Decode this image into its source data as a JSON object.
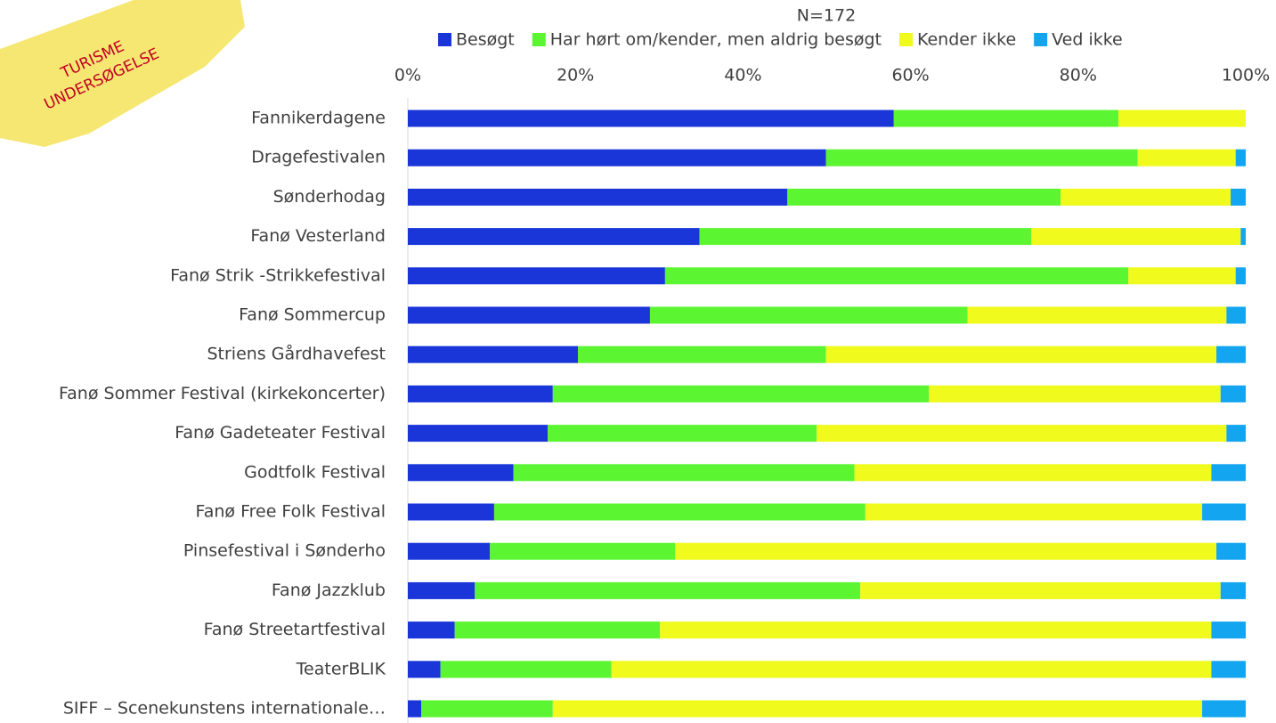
{
  "badge": {
    "lines": [
      "TURISME",
      "UNDERSØGELSE"
    ]
  },
  "chart_data": {
    "type": "stacked-barh",
    "title": "N=172",
    "categories": [
      "Fannikerdagene",
      "Dragefestivalen",
      "Sønderhodag",
      "Fanø Vesterland",
      "Fanø Strik -Strikkefestival",
      "Fanø Sommercup",
      "Striens Gårdhavefest",
      "Fanø Sommer Festival (kirkekoncerter)",
      "Fanø Gadeteater Festival",
      "Godtfolk Festival",
      "Fanø Free Folk Festival",
      "Pinsefestival i Sønderho",
      "Fanø Jazzklub",
      "Fanø Streetartfestival",
      "TeaterBLIK",
      "SIFF – Scenekunstens internationale…"
    ],
    "series": [
      {
        "name": "Besøgt",
        "color": "#1a35d8",
        "values": [
          58.0,
          49.9,
          45.3,
          34.8,
          30.7,
          28.9,
          20.3,
          17.3,
          16.7,
          12.6,
          10.3,
          9.8,
          8.0,
          5.6,
          3.9,
          1.6
        ]
      },
      {
        "name": "Har hørt om/kender, men aldrig besøgt",
        "color": "#5cf532",
        "values": [
          26.8,
          37.2,
          32.6,
          39.6,
          55.3,
          37.9,
          29.6,
          44.9,
          32.1,
          40.7,
          44.3,
          22.1,
          46.0,
          24.5,
          20.4,
          15.7
        ]
      },
      {
        "name": "Kender ikke",
        "color": "#f0fa1c",
        "values": [
          15.2,
          11.7,
          20.3,
          25.0,
          12.8,
          30.9,
          46.6,
          34.8,
          48.9,
          42.6,
          40.2,
          64.6,
          43.0,
          65.8,
          71.6,
          77.5
        ]
      },
      {
        "name": "Ved ikke",
        "color": "#13a5ef",
        "values": [
          0,
          1.2,
          1.8,
          0.6,
          1.2,
          2.3,
          3.5,
          3.0,
          2.3,
          4.1,
          5.2,
          3.5,
          3.0,
          4.1,
          4.1,
          5.2
        ]
      }
    ],
    "xlim": [
      0,
      100
    ],
    "xticks": [
      {
        "value": 0,
        "label": "0%"
      },
      {
        "value": 20,
        "label": "20%"
      },
      {
        "value": 40,
        "label": "40%"
      },
      {
        "value": 60,
        "label": "60%"
      },
      {
        "value": 80,
        "label": "80%"
      },
      {
        "value": 100,
        "label": "100%"
      }
    ],
    "legend": "top"
  }
}
